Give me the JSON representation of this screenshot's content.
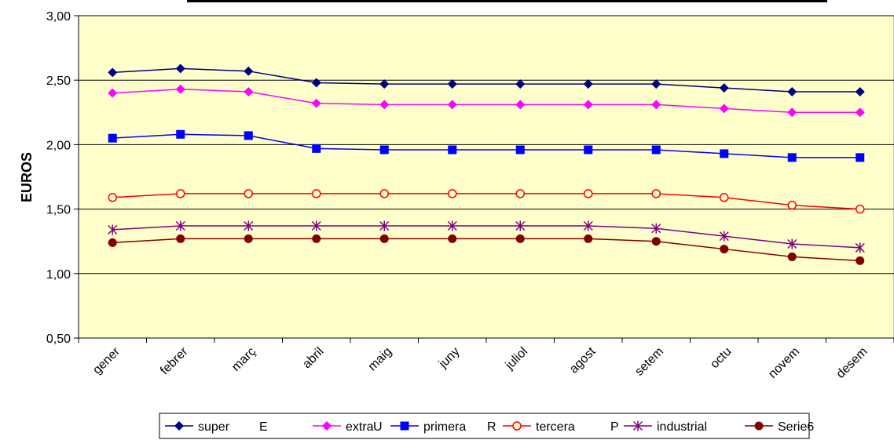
{
  "chart_data": {
    "type": "line",
    "title": "",
    "xlabel": "",
    "ylabel": "EUROS",
    "ylim": [
      0.5,
      3.0
    ],
    "yticks": [
      "0,50",
      "1,00",
      "1,50",
      "2,00",
      "2,50",
      "3,00"
    ],
    "ytick_values": [
      0.5,
      1.0,
      1.5,
      2.0,
      2.5,
      3.0
    ],
    "categories": [
      "gener",
      "febrer",
      "març",
      "abril",
      "maig",
      "juny",
      "juliol",
      "agost",
      "setem",
      "octu",
      "novem",
      "desem"
    ],
    "grid": true,
    "legend_position": "bottom",
    "plot_background": "#ffffcc",
    "series": [
      {
        "name": "super",
        "color": "#000080",
        "marker": "diamond",
        "values": [
          2.56,
          2.59,
          2.57,
          2.48,
          2.47,
          2.47,
          2.47,
          2.47,
          2.47,
          2.44,
          2.41,
          2.41
        ]
      },
      {
        "name": "extra",
        "color": "#ff00ff",
        "marker": "diamond",
        "values": [
          2.4,
          2.43,
          2.41,
          2.32,
          2.31,
          2.31,
          2.31,
          2.31,
          2.31,
          2.28,
          2.25,
          2.25
        ]
      },
      {
        "name": "primera",
        "color": "#0000ff",
        "marker": "square",
        "values": [
          2.05,
          2.08,
          2.07,
          1.97,
          1.96,
          1.96,
          1.96,
          1.96,
          1.96,
          1.93,
          1.9,
          1.9
        ]
      },
      {
        "name": "tercera",
        "color": "#ff0000",
        "marker": "circle-open",
        "values": [
          1.59,
          1.62,
          1.62,
          1.62,
          1.62,
          1.62,
          1.62,
          1.62,
          1.62,
          1.59,
          1.53,
          1.5
        ]
      },
      {
        "name": "industrial",
        "color": "#800080",
        "marker": "star",
        "values": [
          1.34,
          1.37,
          1.37,
          1.37,
          1.37,
          1.37,
          1.37,
          1.37,
          1.35,
          1.29,
          1.23,
          1.2
        ]
      },
      {
        "name": "Serie6",
        "color": "#800000",
        "marker": "circle",
        "values": [
          1.24,
          1.27,
          1.27,
          1.27,
          1.27,
          1.27,
          1.27,
          1.27,
          1.25,
          1.19,
          1.13,
          1.1
        ]
      }
    ],
    "legend_extra_letters": [
      "E",
      "U",
      "R",
      "P"
    ]
  }
}
